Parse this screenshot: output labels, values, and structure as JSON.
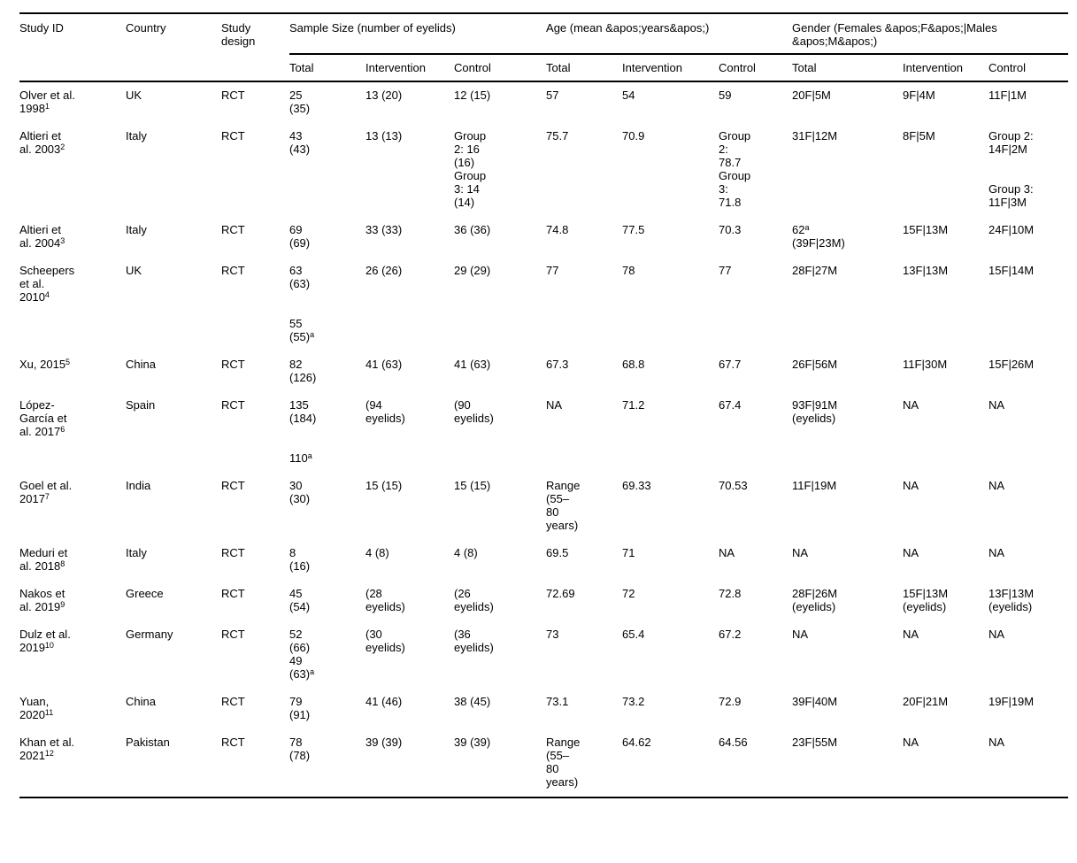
{
  "colors": {
    "background": "#ffffff",
    "text": "#000000",
    "rule": "#000000"
  },
  "header": {
    "study_id": "Study ID",
    "country": "Country",
    "study_design": "Study\ndesign",
    "groups": {
      "sample_size": "Sample Size (number of eyelids)",
      "age": "Age (mean &apos;years&apos;)",
      "gender": "Gender (Females &apos;F&apos;|Males\n&apos;M&apos;)"
    },
    "sub": {
      "total": "Total",
      "intervention": "Intervention",
      "control": "Control"
    }
  },
  "rows": [
    {
      "study": "Olver et al.\n1998^{1}",
      "country": "UK",
      "design": "RCT",
      "sample": {
        "total": "25\n(35)",
        "intervention": "13 (20)",
        "control": "12 (15)"
      },
      "age": {
        "total": "57",
        "intervention": "54",
        "control": "59"
      },
      "gender": {
        "total": "20F|5M",
        "intervention": "9F|4M",
        "control": "11F|1M"
      }
    },
    {
      "study": "Altieri et\nal. 2003^{2}",
      "country": "Italy",
      "design": "RCT",
      "sample": {
        "total": "43\n(43)",
        "intervention": "13 (13)",
        "control": "Group\n2: 16\n(16)\nGroup\n3: 14\n(14)"
      },
      "age": {
        "total": "75.7",
        "intervention": "70.9",
        "control": "Group\n2:\n78.7\nGroup\n3:\n71.8"
      },
      "gender": {
        "total": "31F|12M",
        "intervention": "8F|5M",
        "control": "Group 2:\n14F|2M\n\n\nGroup 3:\n11F|3M"
      }
    },
    {
      "study": "Altieri et\nal. 2004^{3}",
      "country": "Italy",
      "design": "RCT",
      "sample": {
        "total": "69\n(69)",
        "intervention": "33 (33)",
        "control": "36 (36)"
      },
      "age": {
        "total": "74.8",
        "intervention": "77.5",
        "control": "70.3"
      },
      "gender": {
        "total": "62^{a}\n(39F|23M)",
        "intervention": "15F|13M",
        "control": "24F|10M"
      }
    },
    {
      "study": "Scheepers\net al.\n2010^{4}",
      "country": "UK",
      "design": "RCT",
      "sample": {
        "total": "63\n(63)\n\n\n55\n(55)^{a}",
        "intervention": "26 (26)",
        "control": "29 (29)"
      },
      "age": {
        "total": "77",
        "intervention": "78",
        "control": "77"
      },
      "gender": {
        "total": "28F|27M",
        "intervention": "13F|13M",
        "control": "15F|14M"
      }
    },
    {
      "study": "Xu, 2015^{5}",
      "country": "China",
      "design": "RCT",
      "sample": {
        "total": "82\n(126)",
        "intervention": "41 (63)",
        "control": "41 (63)"
      },
      "age": {
        "total": "67.3",
        "intervention": "68.8",
        "control": "67.7"
      },
      "gender": {
        "total": "26F|56M",
        "intervention": "11F|30M",
        "control": "15F|26M"
      }
    },
    {
      "study": "López-\nGarcía et\nal. 2017^{6}",
      "country": "Spain",
      "design": "RCT",
      "sample": {
        "total": "135\n(184)\n\n\n110^{a}",
        "intervention": "(94\neyelids)",
        "control": "(90\neyelids)"
      },
      "age": {
        "total": "NA",
        "intervention": "71.2",
        "control": "67.4"
      },
      "gender": {
        "total": "93F|91M\n(eyelids)",
        "intervention": "NA",
        "control": "NA"
      }
    },
    {
      "study": "Goel et al.\n2017^{7}",
      "country": "India",
      "design": "RCT",
      "sample": {
        "total": "30\n(30)",
        "intervention": "15 (15)",
        "control": "15 (15)"
      },
      "age": {
        "total": "Range\n(55–\n80\nyears)",
        "intervention": "69.33",
        "control": "70.53"
      },
      "gender": {
        "total": "11F|19M",
        "intervention": "NA",
        "control": "NA"
      }
    },
    {
      "study": "Meduri et\nal. 2018^{8}",
      "country": "Italy",
      "design": "RCT",
      "sample": {
        "total": "8\n(16)",
        "intervention": "4 (8)",
        "control": "4 (8)"
      },
      "age": {
        "total": "69.5",
        "intervention": "71",
        "control": "NA"
      },
      "gender": {
        "total": "NA",
        "intervention": "NA",
        "control": "NA"
      }
    },
    {
      "study": "Nakos et\nal. 2019^{9}",
      "country": "Greece",
      "design": "RCT",
      "sample": {
        "total": "45\n(54)",
        "intervention": "(28\neyelids)",
        "control": "(26\neyelids)"
      },
      "age": {
        "total": "72.69",
        "intervention": "72",
        "control": "72.8"
      },
      "gender": {
        "total": "28F|26M\n(eyelids)",
        "intervention": "15F|13M\n(eyelids)",
        "control": "13F|13M\n(eyelids)"
      }
    },
    {
      "study": "Dulz et al.\n2019^{10}",
      "country": "Germany",
      "design": "RCT",
      "sample": {
        "total": "52\n(66)\n49\n(63)^{a}",
        "intervention": "(30\neyelids)",
        "control": "(36\neyelids)"
      },
      "age": {
        "total": "73",
        "intervention": "65.4",
        "control": "67.2"
      },
      "gender": {
        "total": "NA",
        "intervention": "NA",
        "control": "NA"
      }
    },
    {
      "study": "Yuan,\n2020^{11}",
      "country": "China",
      "design": "RCT",
      "sample": {
        "total": "79\n(91)",
        "intervention": "41 (46)",
        "control": "38 (45)"
      },
      "age": {
        "total": "73.1",
        "intervention": "73.2",
        "control": "72.9"
      },
      "gender": {
        "total": "39F|40M",
        "intervention": "20F|21M",
        "control": "19F|19M"
      }
    },
    {
      "study": "Khan et al.\n2021^{12}",
      "country": "Pakistan",
      "design": "RCT",
      "sample": {
        "total": "78\n(78)",
        "intervention": "39 (39)",
        "control": "39 (39)"
      },
      "age": {
        "total": "Range\n(55–\n80\nyears)",
        "intervention": "64.62",
        "control": "64.56"
      },
      "gender": {
        "total": "23F|55M",
        "intervention": "NA",
        "control": "NA"
      }
    }
  ]
}
